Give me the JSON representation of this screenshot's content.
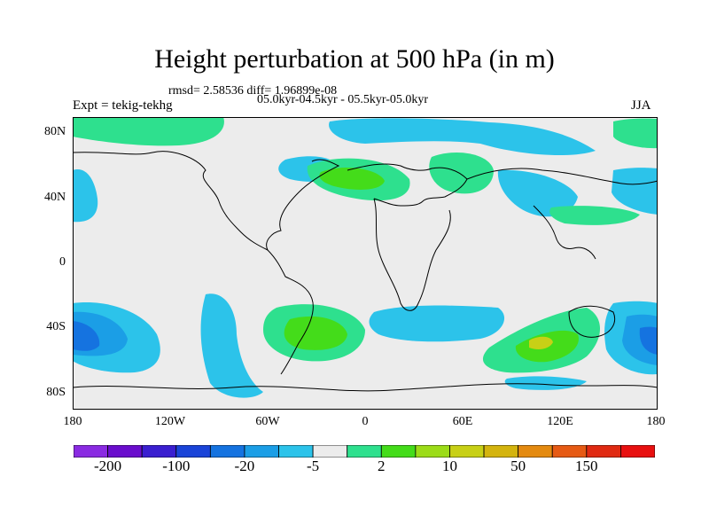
{
  "title": "Height perturbation at 500 hPa (in m)",
  "stats": "rmsd= 2.58536 diff= 1.96899e-08",
  "experiment": "Expt = tekig-tekhg",
  "period": "05.0kyr-04.5kyr - 05.5kyr-05.0kyr",
  "season": "JJA",
  "lat_ticks": [
    "80N",
    "40N",
    "0",
    "40S",
    "80S"
  ],
  "lon_ticks": [
    "180",
    "120W",
    "60W",
    "0",
    "60E",
    "120E",
    "180"
  ],
  "colorbar": {
    "colors": [
      "#8a2be2",
      "#6a0dcd",
      "#3a1fd0",
      "#1a44d8",
      "#1573e0",
      "#1b9ee6",
      "#2cc3ea",
      "#ececec",
      "#2ee08e",
      "#44dc1a",
      "#9cdc18",
      "#c8d016",
      "#d4b40e",
      "#e48a10",
      "#e65a14",
      "#e02a12",
      "#e81010"
    ],
    "labels": [
      "-200",
      "-100",
      "-20",
      "-5",
      "2",
      "10",
      "50",
      "150"
    ]
  },
  "icons": {
    "map_content": "world-coastline-contour-map"
  }
}
